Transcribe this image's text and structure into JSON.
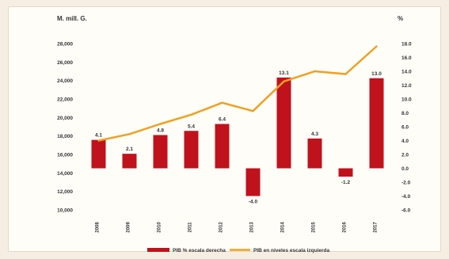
{
  "chart_data": {
    "type": "bar+line",
    "left_axis_unit": "M. mill. G.",
    "right_axis_unit": "%",
    "categories": [
      "2008",
      "2009",
      "2010",
      "2011",
      "2012",
      "2013",
      "2014",
      "2015",
      "2016",
      "2017"
    ],
    "left_axis": {
      "range": [
        10000,
        28000
      ],
      "ticks": [
        "10,000",
        "12,000",
        "14,000",
        "16,000",
        "18,000",
        "20,000",
        "22,000",
        "24,000",
        "26,000",
        "28,000"
      ]
    },
    "right_axis": {
      "range": [
        -6,
        18
      ],
      "ticks": [
        "-6.0",
        "-4.0",
        "-2.0",
        "0.0",
        "2.0",
        "4.0",
        "6.0",
        "8.0",
        "10.0",
        "12.0",
        "14.0",
        "16.0",
        "18.0"
      ]
    },
    "series": [
      {
        "name": "PIB % escala derecha",
        "kind": "bar",
        "axis": "right",
        "color": "#c0121c",
        "values": [
          4.1,
          2.1,
          4.8,
          5.4,
          6.4,
          -4.0,
          13.1,
          4.3,
          -1.2,
          13.0
        ],
        "labels": [
          "4.1",
          "2.1",
          "4.8",
          "5.4",
          "6.4",
          "-4.0",
          "13.1",
          "4.3",
          "-1.2",
          "13.0"
        ]
      },
      {
        "name": "PIB en niveles escala izquierda",
        "kind": "line",
        "axis": "left",
        "color": "#f0a020",
        "values": [
          17500,
          18200,
          19300,
          20300,
          21600,
          20700,
          23900,
          25000,
          24700,
          27700
        ]
      }
    ],
    "legend_position": "bottom",
    "grid": false
  }
}
